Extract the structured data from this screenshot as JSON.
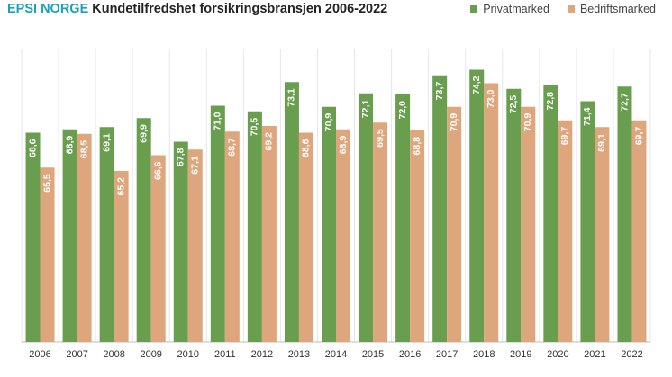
{
  "header": {
    "brand": "EPSI NORGE",
    "title": "Kundetilfredshet forsikringsbransjen 2006-2022"
  },
  "chart_data": {
    "type": "bar",
    "categories": [
      "2006",
      "2007",
      "2008",
      "2009",
      "2010",
      "2011",
      "2012",
      "2013",
      "2014",
      "2015",
      "2016",
      "2017",
      "2018",
      "2019",
      "2020",
      "2021",
      "2022"
    ],
    "series": [
      {
        "name": "Privatmarked",
        "color": "#6a9e4f",
        "values": [
          68.6,
          68.9,
          69.1,
          69.9,
          67.8,
          71.0,
          70.5,
          73.1,
          70.9,
          72.1,
          72.0,
          73.7,
          74.2,
          72.5,
          72.8,
          71.4,
          72.7
        ],
        "labels": [
          "68,6",
          "68,9",
          "69,1",
          "69,9",
          "67,8",
          "71,0",
          "70,5",
          "73,1",
          "70,9",
          "72,1",
          "72,0",
          "73,7",
          "74,2",
          "72,5",
          "72,8",
          "71,4",
          "72,7"
        ]
      },
      {
        "name": "Bedriftsmarked",
        "color": "#dea67d",
        "values": [
          65.5,
          68.5,
          65.2,
          66.6,
          67.1,
          68.7,
          69.2,
          68.6,
          68.9,
          69.5,
          68.8,
          70.9,
          73.0,
          70.9,
          69.7,
          69.1,
          69.7
        ],
        "labels": [
          "65,5",
          "68,5",
          "65,2",
          "66,6",
          "67,1",
          "68,7",
          "69,2",
          "68,6",
          "68,9",
          "69,5",
          "68,8",
          "70,9",
          "73,0",
          "70,9",
          "69,7",
          "69,1",
          "69,7"
        ]
      }
    ],
    "ylim": [
      50,
      76
    ],
    "legend_position": "top-right",
    "grid": "vertical-separators",
    "xlabel": "",
    "ylabel": ""
  }
}
